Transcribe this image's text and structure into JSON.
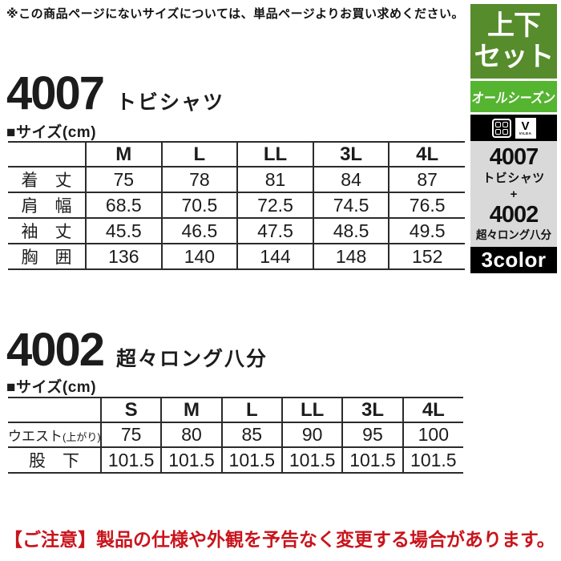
{
  "top_note": "※この商品ページにないサイズについては、単品ページよりお買い求めください。",
  "bottom_note": "【ご注意】製品の仕様や外観を予告なく変更する場合があります。",
  "colors": {
    "set_box_green": "#568c2c",
    "season_box_green": "#55b430",
    "combo_box_gray": "#d9d9d9",
    "badge_black": "#000000",
    "notice_red": "#c9141c"
  },
  "sidebar": {
    "set_line1": "上下",
    "set_line2": "セット",
    "season_label": "オールシーズン",
    "logo_v": "V",
    "logo_vilea": "VILEA",
    "combo": {
      "code1": "4007",
      "name1": "トビシャツ",
      "plus": "+",
      "code2": "4002",
      "name2": "超々ロング八分"
    },
    "color_label": "3color"
  },
  "section1": {
    "code": "4007",
    "name": "トビシャツ",
    "size_label": "■サイズ(cm)",
    "table": {
      "columns": [
        "",
        "M",
        "L",
        "LL",
        "3L",
        "4L"
      ],
      "rows": [
        {
          "label": "着　丈",
          "values": [
            "75",
            "78",
            "81",
            "84",
            "87"
          ]
        },
        {
          "label": "肩　幅",
          "values": [
            "68.5",
            "70.5",
            "72.5",
            "74.5",
            "76.5"
          ]
        },
        {
          "label": "袖　丈",
          "values": [
            "45.5",
            "46.5",
            "47.5",
            "48.5",
            "49.5"
          ]
        },
        {
          "label": "胸　囲",
          "values": [
            "136",
            "140",
            "144",
            "148",
            "152"
          ]
        }
      ]
    }
  },
  "section2": {
    "code": "4002",
    "name": "超々ロング八分",
    "size_label": "■サイズ(cm)",
    "table": {
      "columns": [
        "",
        "S",
        "M",
        "L",
        "LL",
        "3L",
        "4L"
      ],
      "rows": [
        {
          "label": "ウエスト",
          "label_sub": "(上がり)",
          "values": [
            "75",
            "80",
            "85",
            "90",
            "95",
            "100"
          ]
        },
        {
          "label": "股　下",
          "values": [
            "101.5",
            "101.5",
            "101.5",
            "101.5",
            "101.5",
            "101.5"
          ]
        }
      ]
    }
  }
}
